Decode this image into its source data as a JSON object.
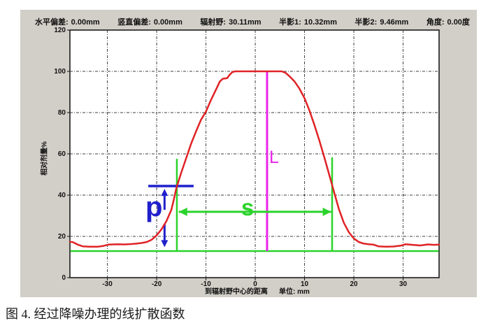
{
  "header": {
    "items": [
      {
        "label": "水平偏差:",
        "value": "0.00mm"
      },
      {
        "label": "竖直偏差:",
        "value": "0.00mm"
      },
      {
        "label": "辐射野:",
        "value": "30.11mm"
      },
      {
        "label": "半影1:",
        "value": "10.32mm"
      },
      {
        "label": "半影2:",
        "value": "9.46mm"
      },
      {
        "label": "角度:",
        "value": "0.00度"
      }
    ]
  },
  "axes": {
    "ylabel": "相对剂量%",
    "xlabel": "到辐射野中心的距离",
    "x_unit": "单位: mm"
  },
  "caption": "图 4. 经过降噪办理的线扩散函数",
  "colors": {
    "curve_red": "#e02326",
    "green": "#2bd32b",
    "magenta": "#ea24ea",
    "blue": "#2020cc",
    "panel_bg": "#d2cfc8",
    "grid": "#3c3c3c"
  },
  "chart_data": {
    "type": "line",
    "title": "线扩散函数 (Line Spread Function, 降噪后)",
    "xlabel": "到辐射野中心的距离 单位: mm",
    "ylabel": "相对剂量%",
    "xlim": [
      -37.6,
      37.3
    ],
    "ylim": [
      0,
      120
    ],
    "x_ticks": [
      -30,
      -20,
      -10,
      0,
      10,
      20,
      30
    ],
    "y_ticks": [
      0,
      20,
      40,
      60,
      80,
      100,
      120
    ],
    "grid": "dash-dot",
    "legend": "none",
    "stats": {
      "horizontal_deviation_mm": 0.0,
      "vertical_deviation_mm": 0.0,
      "field_width_mm": 30.11,
      "penumbra1_mm": 10.32,
      "penumbra2_mm": 9.46,
      "angle_deg": 0.0
    },
    "series": [
      {
        "name": "line-spread-function",
        "points": [
          [
            -37.6,
            17.4
          ],
          [
            -37.0,
            17.2
          ],
          [
            -36.0,
            16.0
          ],
          [
            -35.0,
            15.2
          ],
          [
            -33.5,
            15.0
          ],
          [
            -32.0,
            15.0
          ],
          [
            -30.8,
            15.4
          ],
          [
            -29.8,
            16.0
          ],
          [
            -28.0,
            16.2
          ],
          [
            -26.5,
            16.1
          ],
          [
            -25.0,
            16.3
          ],
          [
            -24.0,
            16.5
          ],
          [
            -23.0,
            16.8
          ],
          [
            -22.0,
            17.3
          ],
          [
            -21.0,
            18.4
          ],
          [
            -20.0,
            20.5
          ],
          [
            -19.0,
            23.5
          ],
          [
            -18.0,
            27.5
          ],
          [
            -17.0,
            33.0
          ],
          [
            -16.5,
            38.0
          ],
          [
            -16.0,
            43.5
          ],
          [
            -15.0,
            51.0
          ],
          [
            -14.0,
            58.0
          ],
          [
            -13.0,
            65.0
          ],
          [
            -12.0,
            71.0
          ],
          [
            -11.0,
            76.5
          ],
          [
            -10.0,
            80.5
          ],
          [
            -9.0,
            86.0
          ],
          [
            -8.0,
            91.0
          ],
          [
            -7.2,
            95.0
          ],
          [
            -6.6,
            96.4
          ],
          [
            -5.7,
            96.7
          ],
          [
            -5.2,
            98.3
          ],
          [
            -4.6,
            99.7
          ],
          [
            -4.0,
            100.0
          ],
          [
            -2.0,
            100.0
          ],
          [
            0.0,
            100.0
          ],
          [
            2.0,
            100.0
          ],
          [
            4.0,
            100.0
          ],
          [
            5.4,
            100.0
          ],
          [
            6.2,
            99.2
          ],
          [
            7.0,
            97.5
          ],
          [
            8.0,
            95.0
          ],
          [
            9.0,
            91.5
          ],
          [
            10.0,
            87.0
          ],
          [
            11.0,
            81.0
          ],
          [
            12.0,
            74.0
          ],
          [
            13.0,
            66.5
          ],
          [
            14.0,
            58.5
          ],
          [
            15.0,
            50.0
          ],
          [
            16.0,
            41.5
          ],
          [
            17.0,
            33.0
          ],
          [
            18.0,
            26.5
          ],
          [
            19.0,
            22.0
          ],
          [
            20.0,
            19.0
          ],
          [
            21.0,
            17.3
          ],
          [
            22.0,
            16.5
          ],
          [
            23.0,
            16.2
          ],
          [
            24.0,
            16.0
          ],
          [
            25.0,
            15.2
          ],
          [
            26.5,
            15.0
          ],
          [
            28.0,
            15.1
          ],
          [
            29.5,
            15.5
          ],
          [
            30.5,
            16.2
          ],
          [
            32.0,
            15.9
          ],
          [
            33.5,
            15.6
          ],
          [
            35.0,
            16.1
          ],
          [
            36.3,
            15.9
          ],
          [
            37.3,
            16.0
          ]
        ]
      }
    ],
    "annotations": {
      "baseline": {
        "y": 12.9,
        "x1": -37.5,
        "x2": 37.2
      },
      "field_left_line": {
        "x": -15.9,
        "y1": 12.9,
        "y2": 57.6
      },
      "field_right_line": {
        "x": 15.6,
        "y1": 12.9,
        "y2": 58.3
      },
      "center_line": {
        "x": 2.4,
        "y1": 12.9,
        "y2": 100.3,
        "label": "L"
      },
      "s_arrow": {
        "y": 31.9,
        "x1": -15.5,
        "x2": 15.4,
        "label": "s"
      },
      "p_hline": {
        "y": 44.4,
        "x1": -21.7,
        "x2": -12.5
      },
      "p_arrow": {
        "x": -18.4,
        "up_from": 32.9,
        "up_to": 43.0,
        "down_from": 26.1,
        "down_to": 14.8,
        "label": "p"
      }
    }
  }
}
